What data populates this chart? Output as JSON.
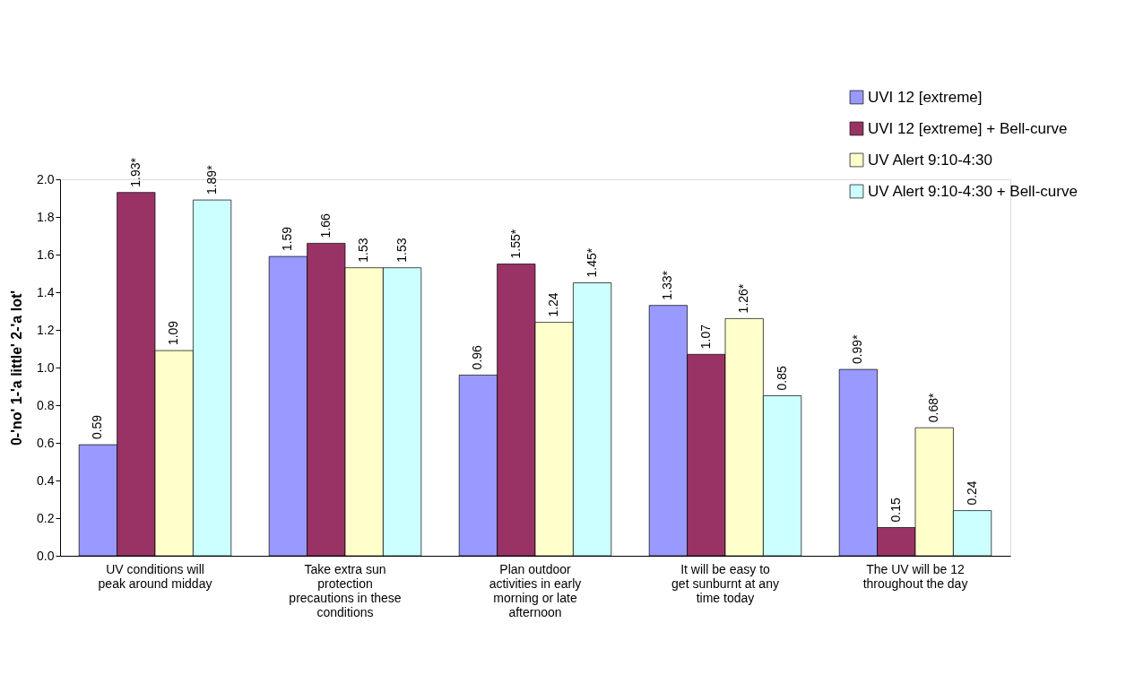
{
  "chart_data": {
    "type": "bar",
    "ylabel": "0-'no'     1-'a little'     2-'a lot'",
    "categories": [
      "UV conditions will peak around midday",
      "Take extra sun protection precautions in these conditions",
      "Plan outdoor activities in early morning or late afternoon",
      "It will be easy to get sunburnt at any time today",
      "The UV will be 12 throughout the day"
    ],
    "series": [
      {
        "name": "UVI 12 [extreme]",
        "color": "#9999ff",
        "values": [
          0.59,
          1.59,
          0.96,
          1.33,
          0.99
        ],
        "value_labels": [
          "0.59",
          "1.59",
          "0.96",
          "1.33*",
          "0.99*"
        ]
      },
      {
        "name": "UVI 12 [extreme] + Bell-curve",
        "color": "#993366",
        "values": [
          1.93,
          1.66,
          1.55,
          1.07,
          0.15
        ],
        "value_labels": [
          "1.93*",
          "1.66",
          "1.55*",
          "1.07",
          "0.15"
        ]
      },
      {
        "name": "UV Alert 9:10-4:30",
        "color": "#ffffcc",
        "values": [
          1.09,
          1.53,
          1.24,
          1.26,
          0.68
        ],
        "value_labels": [
          "1.09",
          "1.53",
          "1.24",
          "1.26*",
          "0.68*"
        ]
      },
      {
        "name": "UV Alert 9:10-4:30 + Bell-curve",
        "color": "#ccffff",
        "values": [
          1.89,
          1.53,
          1.45,
          0.85,
          0.24
        ],
        "value_labels": [
          "1.89*",
          "1.53",
          "1.45*",
          "0.85",
          "0.24"
        ]
      }
    ],
    "ylim": [
      0,
      2
    ],
    "yticks": [
      {
        "value": 0,
        "label": "0.0"
      },
      {
        "value": 0.2,
        "label": "0.2"
      },
      {
        "value": 0.4,
        "label": "0.4"
      },
      {
        "value": 0.6,
        "label": "0.6"
      },
      {
        "value": 0.8,
        "label": "0.8"
      },
      {
        "value": 1.0,
        "label": "1.0"
      },
      {
        "value": 1.2,
        "label": "1.2"
      },
      {
        "value": 1.4,
        "label": "1.4"
      },
      {
        "value": 1.6,
        "label": "1.6"
      },
      {
        "value": 1.8,
        "label": "1.8"
      },
      {
        "value": 2.0,
        "label": "2.0"
      }
    ],
    "grid": false,
    "legend": "top right"
  }
}
